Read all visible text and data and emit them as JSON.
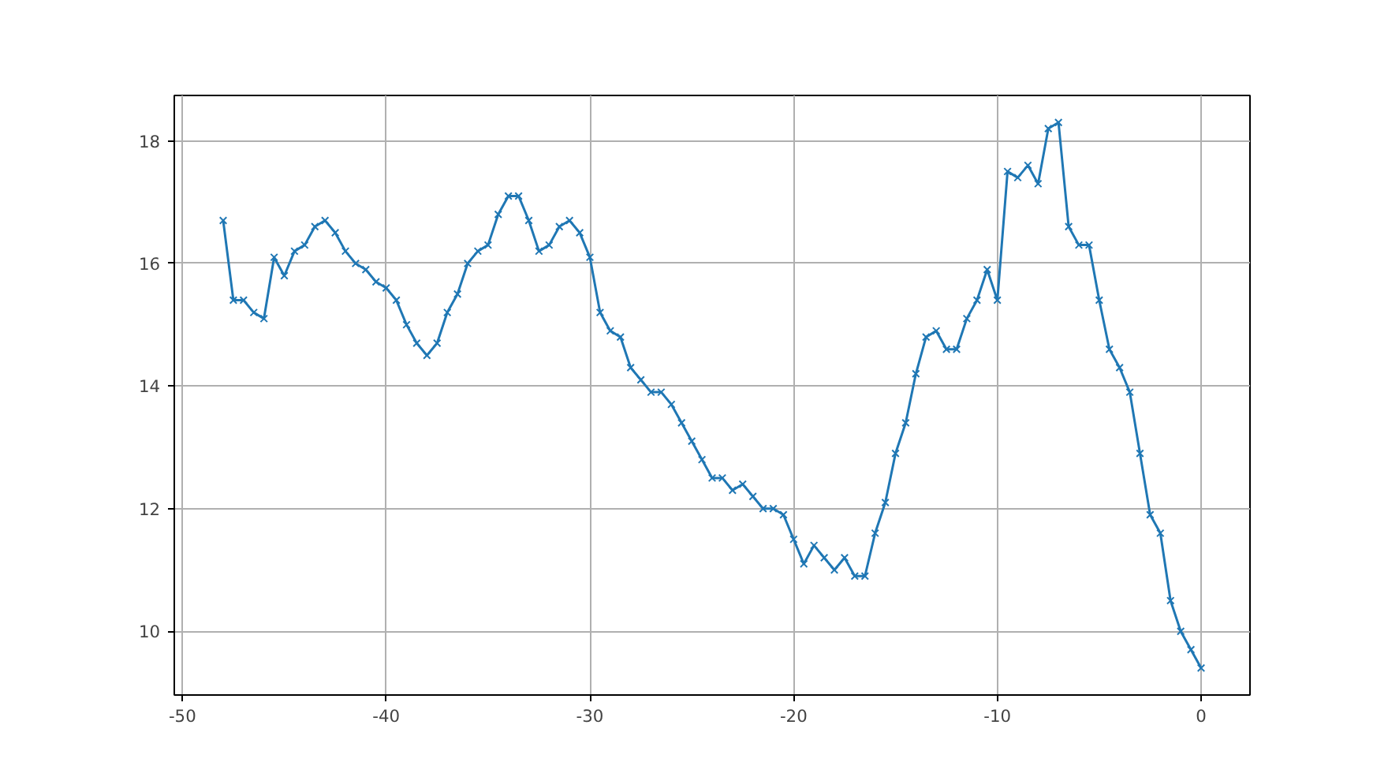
{
  "chart_data": {
    "type": "line",
    "x": [
      -48,
      -47.5,
      -47,
      -46.5,
      -46,
      -45.5,
      -45,
      -44.5,
      -44,
      -43.5,
      -43,
      -42.5,
      -42,
      -41.5,
      -41,
      -40.5,
      -40,
      -39.5,
      -39,
      -38.5,
      -38,
      -37.5,
      -37,
      -36.5,
      -36,
      -35.5,
      -35,
      -34.5,
      -34,
      -33.5,
      -33,
      -32.5,
      -32,
      -31.5,
      -31,
      -30.5,
      -30,
      -29.5,
      -29,
      -28.5,
      -28,
      -27.5,
      -27,
      -26.5,
      -26,
      -25.5,
      -25,
      -24.5,
      -24,
      -23.5,
      -23,
      -22.5,
      -22,
      -21.5,
      -21,
      -20.5,
      -20,
      -19.5,
      -19,
      -18.5,
      -18,
      -17.5,
      -17,
      -16.5,
      -16,
      -15.5,
      -15,
      -14.5,
      -14,
      -13.5,
      -13,
      -12.5,
      -12,
      -11.5,
      -11,
      -10.5,
      -10,
      -9.5,
      -9,
      -8.5,
      -8,
      -7.5,
      -7,
      -6.5,
      -6,
      -5.5,
      -5,
      -4.5,
      -4,
      -3.5,
      -3,
      -2.5,
      -2,
      -1.5,
      -1,
      -0.5,
      0
    ],
    "series": [
      {
        "color": "#1f77b4",
        "values": [
          16.7,
          15.4,
          15.4,
          15.2,
          15.1,
          16.1,
          15.8,
          16.2,
          16.3,
          16.6,
          16.7,
          16.5,
          16.2,
          16.0,
          15.9,
          15.7,
          15.6,
          15.4,
          15.0,
          14.7,
          14.5,
          14.7,
          15.2,
          15.5,
          16.0,
          16.2,
          16.3,
          16.8,
          17.1,
          17.1,
          16.7,
          16.2,
          16.3,
          16.6,
          16.7,
          16.5,
          16.1,
          15.2,
          14.9,
          14.8,
          14.3,
          14.1,
          13.9,
          13.9,
          13.7,
          13.4,
          13.1,
          12.8,
          12.5,
          12.5,
          12.3,
          12.4,
          12.2,
          12.0,
          12.0,
          11.9,
          11.5,
          11.1,
          11.4,
          11.2,
          11.0,
          11.2,
          10.9,
          10.9,
          11.6,
          12.1,
          12.9,
          13.4,
          14.2,
          14.8,
          14.9,
          14.6,
          14.6,
          15.1,
          15.4,
          15.9,
          15.4,
          17.5,
          17.4,
          17.6,
          17.3,
          18.2,
          18.3,
          16.6,
          16.3,
          16.3,
          15.4,
          14.6,
          14.3,
          13.9,
          12.9,
          11.9,
          11.6,
          10.5,
          10.0,
          9.7,
          9.4
        ]
      }
    ],
    "xlim": [
      -50.4,
      2.4
    ],
    "xticks": [
      -50,
      -40,
      -30,
      -20,
      -10,
      0
    ],
    "ylim": [
      8.96,
      18.74
    ],
    "yticks": [
      10,
      12,
      14,
      16,
      18
    ],
    "grid": true,
    "marker": "cross",
    "line_style": "solid"
  }
}
